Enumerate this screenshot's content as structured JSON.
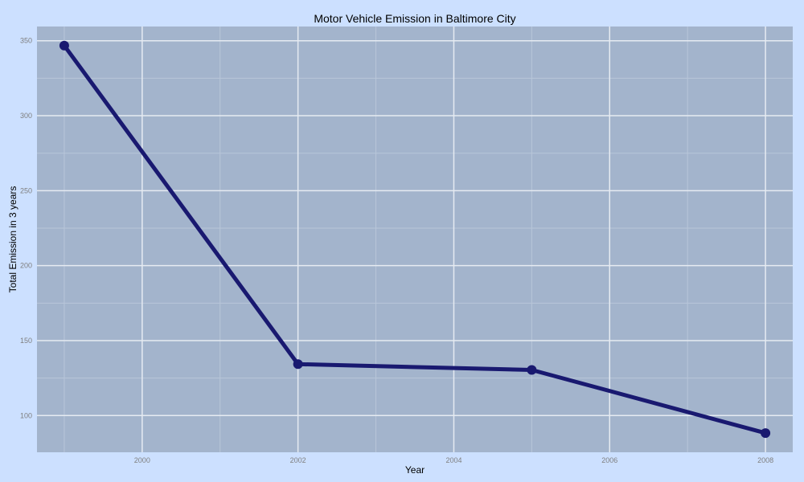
{
  "chart_data": {
    "type": "line",
    "title": "Motor Vehicle Emission in Baltimore City",
    "xlabel": "Year",
    "ylabel": "Total Emission in 3 years",
    "x": [
      1999,
      2002,
      2005,
      2008
    ],
    "series": [
      {
        "values": [
          346.8,
          134.3,
          130.4,
          88.3
        ]
      }
    ],
    "xlim": [
      1998.65,
      2008.35
    ],
    "ylim": [
      75.5,
      359.5
    ],
    "xticks": [
      2000,
      2002,
      2004,
      2006,
      2008
    ],
    "xtick_labels": [
      "2000",
      "2002",
      "2004",
      "2006",
      "2008"
    ],
    "yticks": [
      100,
      150,
      200,
      250,
      300,
      350
    ],
    "ytick_labels": [
      "100",
      "150",
      "200",
      "250",
      "300",
      "350"
    ],
    "grid": true,
    "legend": "none",
    "colors": {
      "background": "#cce0ff",
      "panel": "#a3b4cc",
      "grid_major": "#e6ebf2",
      "grid_minor": "#b8c6d9",
      "line": "#191970",
      "tick_text": "#7f7f7f"
    }
  }
}
